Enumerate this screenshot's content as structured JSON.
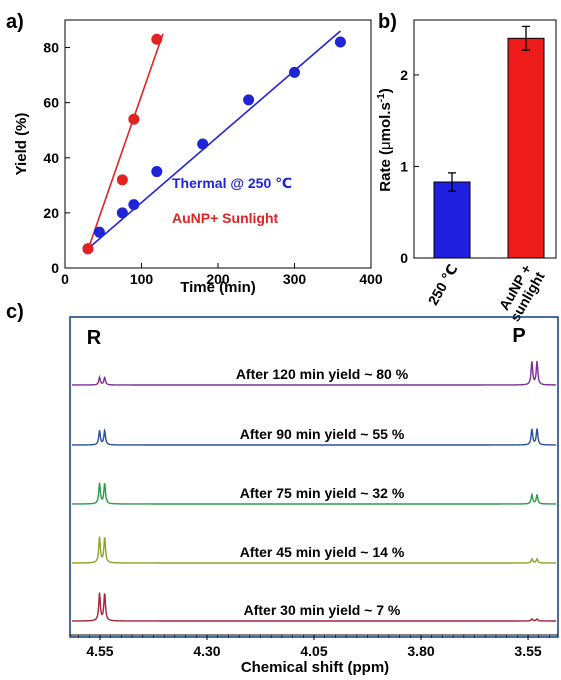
{
  "panel_labels": {
    "a": "a)",
    "b": "b)",
    "c": "c)"
  },
  "chart_data": [
    {
      "panel": "a",
      "type": "scatter",
      "xlabel": "Time (min)",
      "ylabel": "Yield (%)",
      "xlim": [
        0,
        400
      ],
      "ylim": [
        0,
        90
      ],
      "xticks": [
        0,
        100,
        200,
        300,
        400
      ],
      "yticks": [
        0,
        20,
        40,
        60,
        80
      ],
      "series": [
        {
          "name": "Thermal @ 250 ℃",
          "color": "#1f24d6",
          "points": [
            [
              30,
              7
            ],
            [
              45,
              13
            ],
            [
              75,
              20
            ],
            [
              90,
              23
            ],
            [
              120,
              35
            ],
            [
              180,
              45
            ],
            [
              240,
              61
            ],
            [
              300,
              71
            ],
            [
              360,
              82
            ]
          ],
          "fit": [
            [
              30,
              7
            ],
            [
              360,
              86
            ]
          ]
        },
        {
          "name": "AuNP+ Sunlight",
          "color": "#e32222",
          "points": [
            [
              30,
              7
            ],
            [
              75,
              32
            ],
            [
              90,
              54
            ],
            [
              120,
              83
            ]
          ],
          "fit": [
            [
              28,
              5
            ],
            [
              128,
              85
            ]
          ]
        }
      ]
    },
    {
      "panel": "b",
      "type": "bar",
      "ylabel_main": "Rate (",
      "ylabel_mu": "μ",
      "ylabel_unit": "mol.s",
      "ylabel_sup": "-1",
      "ylabel_close": ")",
      "categories": [
        "250 ℃",
        "AuNP +\nsunlight"
      ],
      "values": [
        0.83,
        2.4
      ],
      "errors": [
        0.1,
        0.13
      ],
      "colors": [
        "#1f1fe0",
        "#ee1b1b"
      ],
      "ylim": [
        0,
        2.6
      ],
      "yticks": [
        0,
        1,
        2
      ]
    },
    {
      "panel": "c",
      "type": "line",
      "xlabel": "Chemical shift (ppm)",
      "xlim": [
        4.62,
        3.48
      ],
      "xticks": [
        4.55,
        4.3,
        4.05,
        3.8,
        3.55
      ],
      "peak_labels": [
        "R",
        "P"
      ],
      "spectra": [
        {
          "label": "After 120 min yield ~ 80 %",
          "color": "#7a2e96",
          "yield": 80
        },
        {
          "label": "After 90 min yield ~ 55 %",
          "color": "#2a4f9b",
          "yield": 55
        },
        {
          "label": "After 75 min yield ~ 32 %",
          "color": "#2e9a4a",
          "yield": 32
        },
        {
          "label": "After 45 min yield ~ 14 %",
          "color": "#8aa328",
          "yield": 14
        },
        {
          "label": "After 30 min yield ~ 7 %",
          "color": "#a32238",
          "yield": 7
        }
      ]
    }
  ]
}
